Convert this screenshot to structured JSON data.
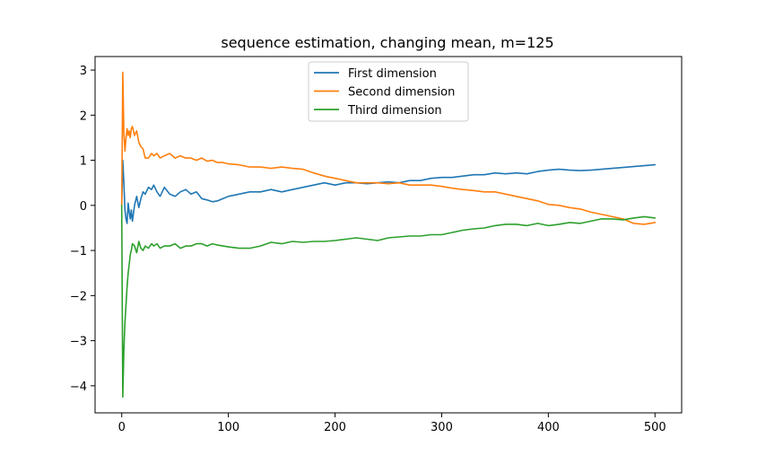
{
  "chart_data": {
    "type": "line",
    "title": "sequence estimation, changing mean, m=125",
    "xlabel": "",
    "ylabel": "",
    "xlim": [
      -25,
      525
    ],
    "ylim": [
      -4.6,
      3.3
    ],
    "xticks": [
      0,
      100,
      200,
      300,
      400,
      500
    ],
    "xtick_labels": [
      "0",
      "100",
      "200",
      "300",
      "400",
      "500"
    ],
    "yticks": [
      3,
      2,
      1,
      0,
      -1,
      -2,
      -3,
      -4
    ],
    "ytick_labels": [
      "3",
      "2",
      "1",
      "0",
      "−1",
      "−2",
      "−3",
      "−4"
    ],
    "grid": false,
    "legend_position": "top-center",
    "series": [
      {
        "name": "First dimension",
        "color": "#1f77b4",
        "x": [
          0,
          1,
          2,
          3,
          4,
          5,
          6,
          7,
          8,
          9,
          10,
          12,
          14,
          16,
          18,
          20,
          22,
          25,
          28,
          30,
          33,
          36,
          40,
          45,
          50,
          55,
          60,
          65,
          70,
          75,
          80,
          85,
          90,
          95,
          100,
          110,
          120,
          130,
          140,
          150,
          160,
          170,
          180,
          190,
          200,
          210,
          220,
          230,
          240,
          250,
          260,
          270,
          280,
          290,
          300,
          310,
          320,
          330,
          340,
          350,
          360,
          370,
          380,
          390,
          400,
          410,
          420,
          430,
          440,
          450,
          460,
          470,
          480,
          490,
          500
        ],
        "y": [
          0.0,
          1.0,
          0.5,
          -0.1,
          -0.3,
          -0.4,
          0.05,
          -0.15,
          -0.3,
          -0.1,
          -0.35,
          0.0,
          0.2,
          -0.05,
          0.15,
          0.3,
          0.25,
          0.4,
          0.35,
          0.45,
          0.3,
          0.2,
          0.4,
          0.25,
          0.2,
          0.3,
          0.35,
          0.25,
          0.3,
          0.15,
          0.12,
          0.08,
          0.1,
          0.15,
          0.2,
          0.25,
          0.3,
          0.3,
          0.35,
          0.3,
          0.35,
          0.4,
          0.45,
          0.5,
          0.45,
          0.5,
          0.5,
          0.48,
          0.5,
          0.52,
          0.5,
          0.55,
          0.55,
          0.6,
          0.62,
          0.62,
          0.65,
          0.68,
          0.68,
          0.72,
          0.7,
          0.72,
          0.7,
          0.75,
          0.78,
          0.8,
          0.78,
          0.77,
          0.78,
          0.8,
          0.82,
          0.84,
          0.86,
          0.88,
          0.9
        ]
      },
      {
        "name": "Second dimension",
        "color": "#ff7f0e",
        "x": [
          0,
          1,
          2,
          3,
          4,
          5,
          6,
          7,
          8,
          9,
          10,
          12,
          14,
          16,
          18,
          20,
          22,
          25,
          28,
          30,
          33,
          36,
          40,
          45,
          50,
          55,
          60,
          65,
          70,
          75,
          80,
          85,
          90,
          95,
          100,
          110,
          120,
          130,
          140,
          150,
          160,
          170,
          180,
          190,
          200,
          210,
          220,
          230,
          240,
          250,
          260,
          270,
          280,
          290,
          300,
          310,
          320,
          330,
          340,
          350,
          360,
          370,
          380,
          390,
          400,
          410,
          420,
          430,
          440,
          450,
          460,
          470,
          480,
          490,
          500
        ],
        "y": [
          0.0,
          2.95,
          1.6,
          1.2,
          1.5,
          1.7,
          1.55,
          1.65,
          1.5,
          1.7,
          1.75,
          1.55,
          1.65,
          1.4,
          1.3,
          1.25,
          1.05,
          1.05,
          1.15,
          1.1,
          1.15,
          1.05,
          1.1,
          1.15,
          1.05,
          1.1,
          1.05,
          1.05,
          1.0,
          1.05,
          0.98,
          1.0,
          0.95,
          0.95,
          0.92,
          0.9,
          0.85,
          0.85,
          0.82,
          0.85,
          0.82,
          0.8,
          0.72,
          0.65,
          0.6,
          0.55,
          0.5,
          0.5,
          0.5,
          0.48,
          0.5,
          0.45,
          0.45,
          0.45,
          0.42,
          0.38,
          0.35,
          0.33,
          0.3,
          0.3,
          0.25,
          0.2,
          0.15,
          0.1,
          0.02,
          0.0,
          -0.05,
          -0.08,
          -0.15,
          -0.2,
          -0.25,
          -0.3,
          -0.4,
          -0.42,
          -0.38
        ]
      },
      {
        "name": "Third dimension",
        "color": "#2ca02c",
        "x": [
          0,
          1,
          2,
          3,
          4,
          5,
          6,
          7,
          8,
          9,
          10,
          12,
          14,
          16,
          18,
          20,
          22,
          25,
          28,
          30,
          33,
          36,
          40,
          45,
          50,
          55,
          60,
          65,
          70,
          75,
          80,
          85,
          90,
          95,
          100,
          110,
          120,
          130,
          140,
          150,
          160,
          170,
          180,
          190,
          200,
          210,
          220,
          230,
          240,
          250,
          260,
          270,
          280,
          290,
          300,
          310,
          320,
          330,
          340,
          350,
          360,
          370,
          380,
          390,
          400,
          410,
          420,
          430,
          440,
          450,
          460,
          470,
          480,
          490,
          500
        ],
        "y": [
          0.0,
          -4.25,
          -3.2,
          -2.6,
          -2.2,
          -1.8,
          -1.5,
          -1.3,
          -1.1,
          -1.0,
          -0.85,
          -0.9,
          -1.05,
          -0.8,
          -0.95,
          -1.0,
          -0.9,
          -0.95,
          -0.85,
          -0.9,
          -0.85,
          -0.95,
          -0.9,
          -0.9,
          -0.85,
          -0.95,
          -0.9,
          -0.9,
          -0.85,
          -0.85,
          -0.9,
          -0.85,
          -0.88,
          -0.9,
          -0.92,
          -0.95,
          -0.95,
          -0.9,
          -0.82,
          -0.85,
          -0.8,
          -0.82,
          -0.8,
          -0.8,
          -0.78,
          -0.75,
          -0.72,
          -0.75,
          -0.78,
          -0.72,
          -0.7,
          -0.68,
          -0.68,
          -0.65,
          -0.65,
          -0.6,
          -0.55,
          -0.52,
          -0.5,
          -0.45,
          -0.42,
          -0.42,
          -0.45,
          -0.4,
          -0.45,
          -0.42,
          -0.38,
          -0.4,
          -0.35,
          -0.3,
          -0.3,
          -0.32,
          -0.28,
          -0.25,
          -0.28
        ]
      }
    ]
  }
}
